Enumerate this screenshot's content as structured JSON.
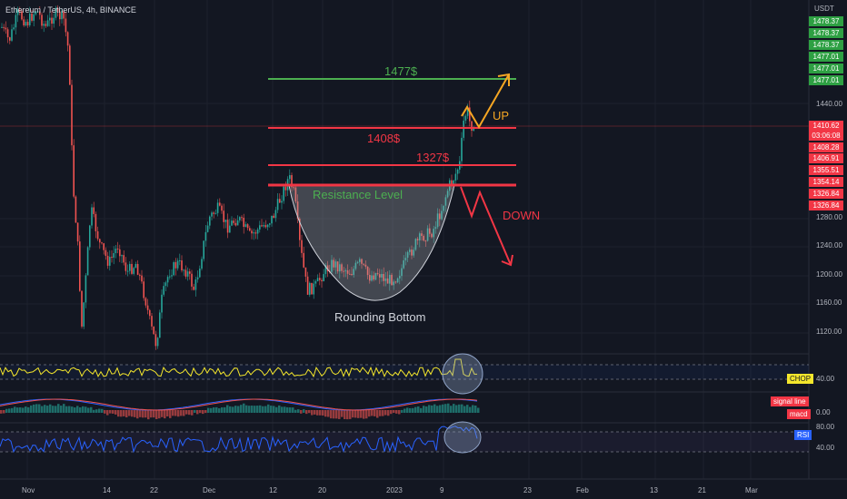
{
  "header": {
    "symbol_title": "Ethereum / TetherUS, 4h, BINANCE",
    "currency": "USDT"
  },
  "price_axis": {
    "ticks": [
      "1440.00",
      "1280.00",
      "1240.00",
      "1200.00",
      "1160.00",
      "1120.00"
    ],
    "green_labels": [
      "1478.37",
      "1478.37",
      "1478.37",
      "1477.01",
      "1477.01",
      "1477.01"
    ],
    "red_labels": [
      "1410.62",
      "03:06:08",
      "1408.28",
      "1406.91",
      "1355.51",
      "1354.14",
      "1326.84",
      "1326.84"
    ]
  },
  "time_axis": {
    "ticks": [
      "Nov",
      "14",
      "22",
      "Dec",
      "12",
      "20",
      "2023",
      "9",
      "23",
      "Feb",
      "13",
      "21",
      "Mar"
    ]
  },
  "annotations": {
    "level_1477": "1477$",
    "level_1408": "1408$",
    "level_1327": "1327$",
    "resistance": "Resistance Level",
    "rounding_bottom": "Rounding Bottom",
    "up": "UP",
    "down": "DOWN"
  },
  "indicators": {
    "chop": {
      "name": "CHOP",
      "level": "40.00"
    },
    "macd": {
      "signal_label": "signal line",
      "macd_label": "macd",
      "level": "0.00"
    },
    "rsi": {
      "name": "RSI",
      "level_high": "80.00",
      "level_low": "40.00"
    }
  },
  "colors": {
    "background": "#131722",
    "up_candle": "#26a69a",
    "down_candle": "#ef5350",
    "green_line": "#4caf50",
    "red_line": "#f23645",
    "arrow_up": "#f5a623",
    "chop_line": "#f5e72c",
    "rsi_line": "#2962ff",
    "macd_line": "#2962ff",
    "signal_line": "#ef5350"
  }
}
